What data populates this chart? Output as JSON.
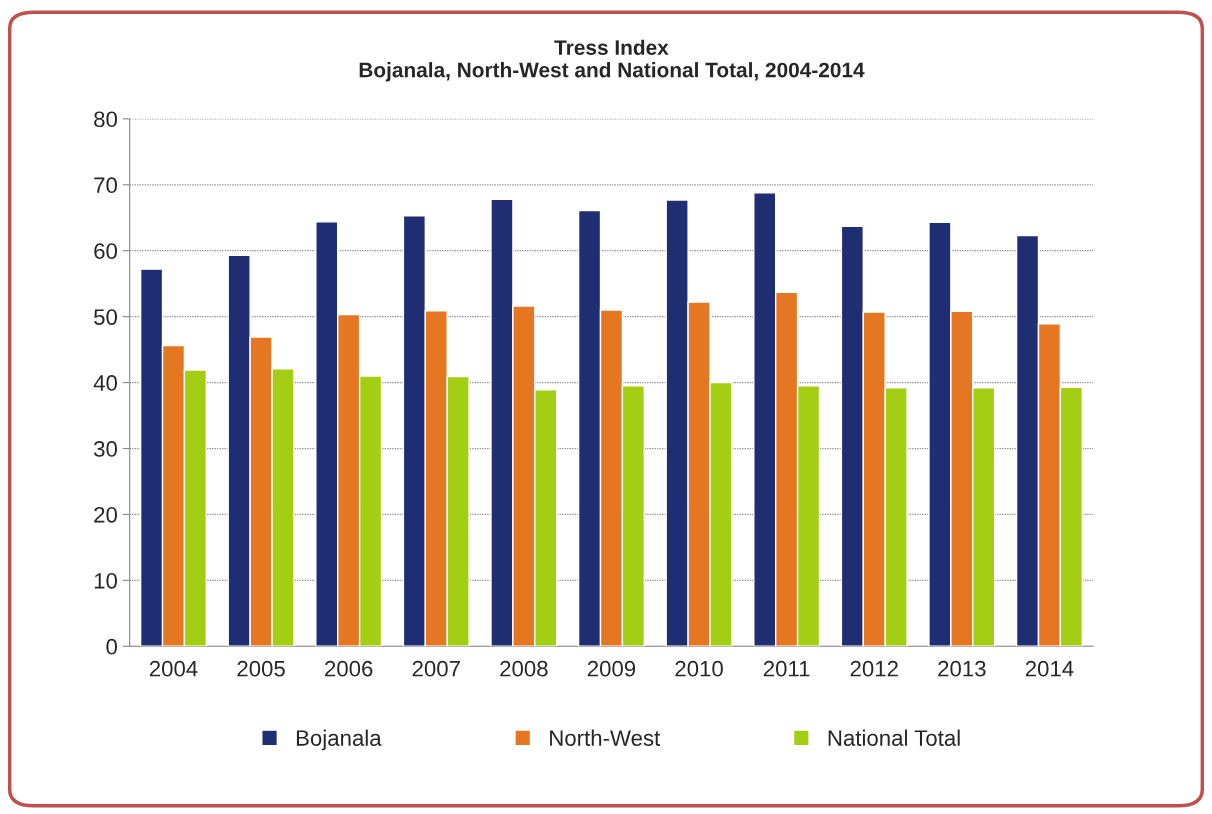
{
  "chart_data": {
    "type": "bar",
    "title": "Tress Index\nBojanala, North-West and National Total, 2004-2014",
    "categories": [
      "2004",
      "2005",
      "2006",
      "2007",
      "2008",
      "2009",
      "2010",
      "2011",
      "2012",
      "2013",
      "2014"
    ],
    "series": [
      {
        "name": "Bojanala",
        "color": "#1f2d73",
        "values": [
          57.2,
          59.3,
          64.4,
          65.3,
          67.8,
          66.1,
          67.7,
          68.8,
          63.7,
          64.3,
          62.3
        ]
      },
      {
        "name": "North-West",
        "color": "#e67722",
        "values": [
          45.6,
          46.9,
          50.3,
          50.9,
          51.6,
          51.0,
          52.2,
          53.7,
          50.7,
          50.8,
          48.9
        ]
      },
      {
        "name": "National Total",
        "color": "#a3ce14",
        "values": [
          41.9,
          42.1,
          41.0,
          40.9,
          38.9,
          39.5,
          40.0,
          39.5,
          39.2,
          39.2,
          39.3
        ]
      }
    ],
    "ylim": [
      0,
      80
    ],
    "yticks": [
      0,
      10,
      20,
      30,
      40,
      50,
      60,
      70,
      80
    ],
    "grid": "y",
    "legend": "bottom"
  }
}
